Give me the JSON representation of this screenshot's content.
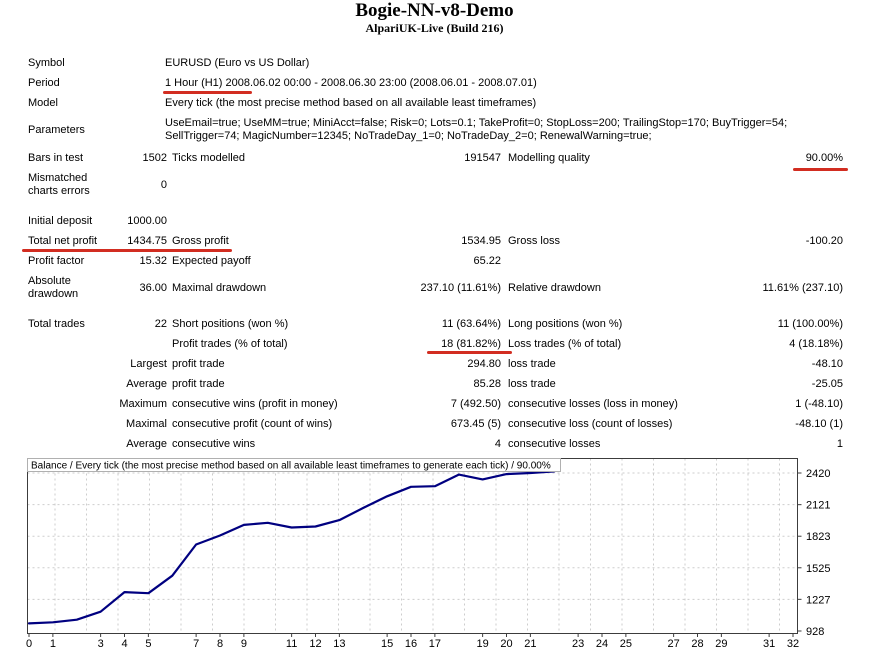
{
  "header": {
    "title": "Bogie-NN-v8-Demo",
    "subtitle": "AlpariUK-Live (Build 216)"
  },
  "info_rows": [
    {
      "label": "Symbol",
      "value": "EURUSD (Euro vs US Dollar)"
    },
    {
      "label": "Period",
      "value": "1 Hour (H1) 2008.06.02 00:00 - 2008.06.30 23:00 (2008.06.01 - 2008.07.01)"
    },
    {
      "label": "Model",
      "value": "Every tick (the most precise method based on all available least timeframes)"
    },
    {
      "label": "Parameters",
      "value": "UseEmail=true; UseMM=true; MiniAcct=false; Risk=0; Lots=0.1; TakeProfit=0; StopLoss=200; TrailingStop=170; BuyTrigger=54; SellTrigger=74; MagicNumber=12345; NoTradeDay_1=0; NoTradeDay_2=0; RenewalWarning=true;",
      "tall": true
    }
  ],
  "stat_rows": [
    {
      "c1": "Bars in test",
      "c2": "1502",
      "c3": "Ticks modelled",
      "c4": "191547",
      "c5": "Modelling quality",
      "c6": "90.00%"
    },
    {
      "c1": "Mismatched charts errors",
      "c2": "0",
      "tall": true
    },
    {
      "c1": "Initial deposit",
      "c2": "1000.00",
      "gapBefore": true
    },
    {
      "c1": "Total net profit",
      "c2": "1434.75",
      "c3": "Gross profit",
      "c4": "1534.95",
      "c5": "Gross loss",
      "c6": "-100.20"
    },
    {
      "c1": "Profit factor",
      "c2": "15.32",
      "c3": "Expected payoff",
      "c4": "65.22"
    },
    {
      "c1": "Absolute drawdown",
      "c2": "36.00",
      "c3": "Maximal drawdown",
      "c4": "237.10 (11.61%)",
      "c5": "Relative drawdown",
      "c6": "11.61% (237.10)",
      "tall": true
    },
    {
      "c1": "Total trades",
      "c2": "22",
      "c3": "Short positions (won %)",
      "c4": "11 (63.64%)",
      "c5": "Long positions (won %)",
      "c6": "11 (100.00%)",
      "gapBefore": true
    },
    {
      "c3": "Profit trades (% of total)",
      "c4": "18 (81.82%)",
      "c5": "Loss trades (% of total)",
      "c6": "4 (18.18%)"
    },
    {
      "c2": "Largest",
      "c3": "profit trade",
      "c4": "294.80",
      "c5": "loss trade",
      "c6": "-48.10"
    },
    {
      "c2": "Average",
      "c3": "profit trade",
      "c4": "85.28",
      "c5": "loss trade",
      "c6": "-25.05"
    },
    {
      "c2": "Maximum",
      "c3": "consecutive wins (profit in money)",
      "c4": "7 (492.50)",
      "c5": "consecutive losses (loss in money)",
      "c6": "1 (-48.10)"
    },
    {
      "c2": "Maximal",
      "c3": "consecutive profit (count of wins)",
      "c4": "673.45 (5)",
      "c5": "consecutive loss (count of losses)",
      "c6": "-48.10 (1)"
    },
    {
      "c2": "Average",
      "c3": "consecutive wins",
      "c4": "4",
      "c5": "consecutive losses",
      "c6": "1"
    }
  ],
  "annotations": {
    "color": "#d22d21",
    "items": [
      "period-timeframe",
      "modelling-quality",
      "total-net-profit",
      "profit-trades-count"
    ]
  },
  "chart_data": {
    "type": "line",
    "title": "Balance / Every tick (the most precise method based on all available least timeframes to generate each tick) / 90.00%",
    "legend_position": "none",
    "grid": true,
    "line_color": "#000080",
    "xlim": [
      0,
      32
    ],
    "ylim": [
      909,
      2560
    ],
    "x_ticks": [
      0,
      1,
      3,
      4,
      5,
      7,
      8,
      9,
      11,
      12,
      13,
      15,
      16,
      17,
      19,
      20,
      21,
      23,
      24,
      25,
      27,
      28,
      29,
      31,
      32
    ],
    "y_ticks": [
      928,
      1227,
      1525,
      1823,
      2121,
      2420
    ],
    "series": [
      {
        "name": "Balance",
        "x": [
          0,
          1,
          2,
          3,
          4,
          5,
          6,
          7,
          8,
          9,
          10,
          11,
          12,
          13,
          14,
          15,
          16,
          17,
          18,
          19,
          20,
          21,
          22
        ],
        "values": [
          1000,
          1010,
          1035,
          1110,
          1295,
          1285,
          1450,
          1745,
          1830,
          1930,
          1950,
          1905,
          1915,
          1975,
          2090,
          2200,
          2290,
          2295,
          2405,
          2360,
          2410,
          2420,
          2434.75
        ]
      }
    ]
  }
}
